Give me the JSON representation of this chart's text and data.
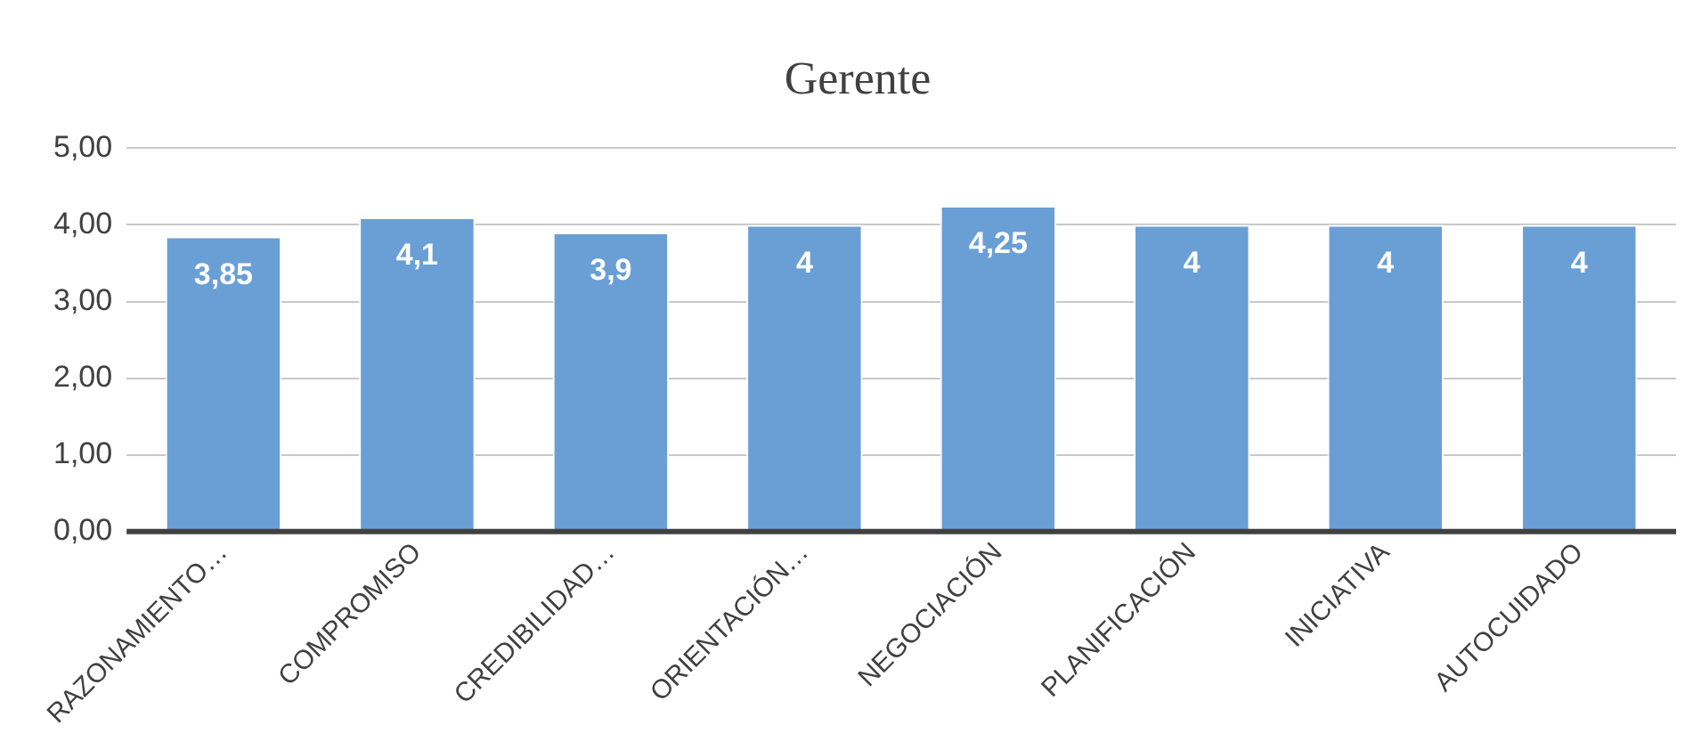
{
  "chart_data": {
    "type": "bar",
    "title": "Gerente",
    "categories": [
      "RAZONAMIENTO…",
      "COMPROMISO",
      "CREDIBILIDAD…",
      "ORIENTACIÓN…",
      "NEGOCIACIÓN",
      "PLANIFICACIÓN",
      "INICIATIVA",
      "AUTOCUIDADO"
    ],
    "values": [
      3.85,
      4.1,
      3.9,
      4,
      4.25,
      4,
      4,
      4
    ],
    "value_labels": [
      "3,85",
      "4,1",
      "3,9",
      "4",
      "4,25",
      "4",
      "4",
      "4"
    ],
    "color": "#6a9fd6",
    "ylim": [
      0,
      5
    ],
    "yticks": [
      {
        "value": 0,
        "label": "0,00"
      },
      {
        "value": 1,
        "label": "1,00"
      },
      {
        "value": 2,
        "label": "2,00"
      },
      {
        "value": 3,
        "label": "3,00"
      },
      {
        "value": 4,
        "label": "4,00"
      },
      {
        "value": 5,
        "label": "5,00"
      }
    ],
    "grid": "y",
    "legend": false
  }
}
